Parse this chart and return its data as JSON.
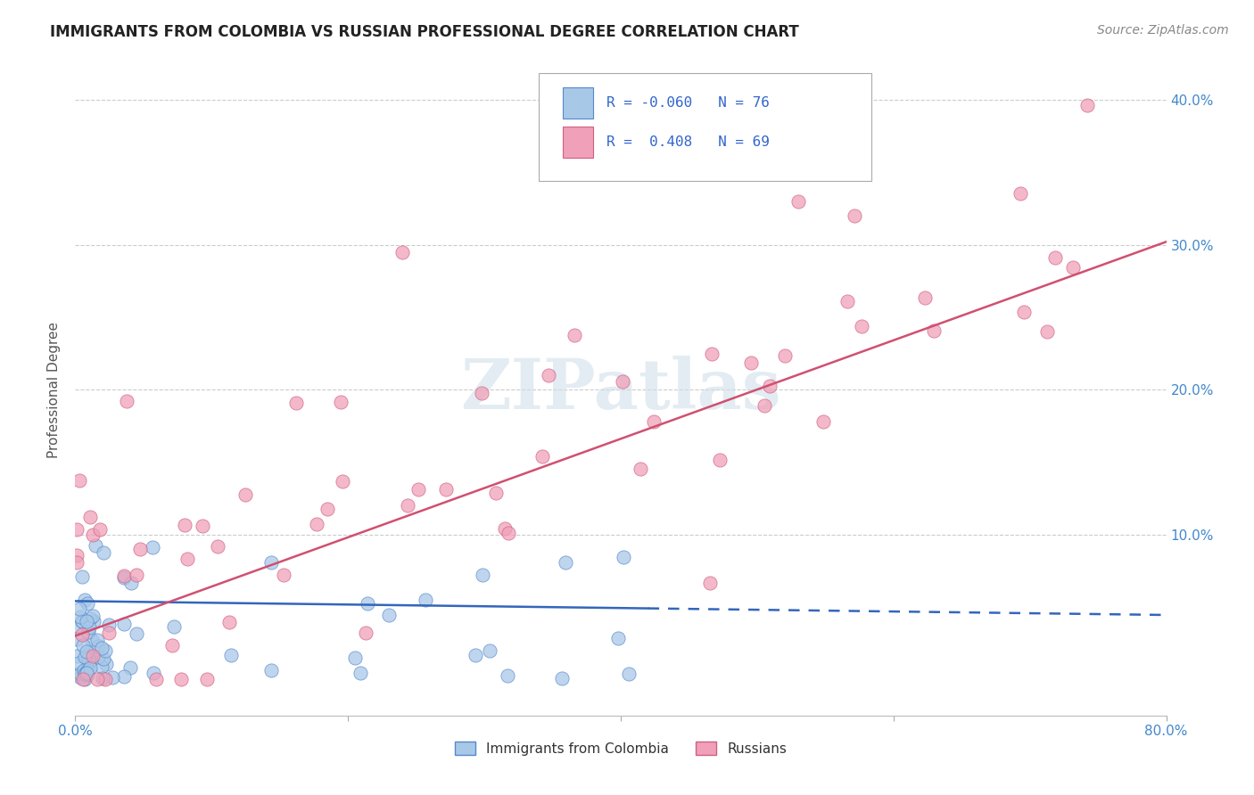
{
  "title": "IMMIGRANTS FROM COLOMBIA VS RUSSIAN PROFESSIONAL DEGREE CORRELATION CHART",
  "source": "Source: ZipAtlas.com",
  "ylabel": "Professional Degree",
  "xlim": [
    0.0,
    0.8
  ],
  "ylim": [
    -0.025,
    0.425
  ],
  "colombia_R": -0.06,
  "colombia_N": 76,
  "russia_R": 0.408,
  "russia_N": 69,
  "colombia_color": "#a8c8e8",
  "russia_color": "#f0a0b8",
  "colombia_edge_color": "#5588cc",
  "russia_edge_color": "#d06080",
  "colombia_line_color": "#3366bb",
  "russia_line_color": "#d05070",
  "watermark": "ZIPatlas",
  "background_color": "#ffffff",
  "grid_color": "#cccccc",
  "ytick_labels": [
    "10.0%",
    "20.0%",
    "30.0%",
    "40.0%"
  ],
  "ytick_vals": [
    0.1,
    0.2,
    0.3,
    0.4
  ]
}
